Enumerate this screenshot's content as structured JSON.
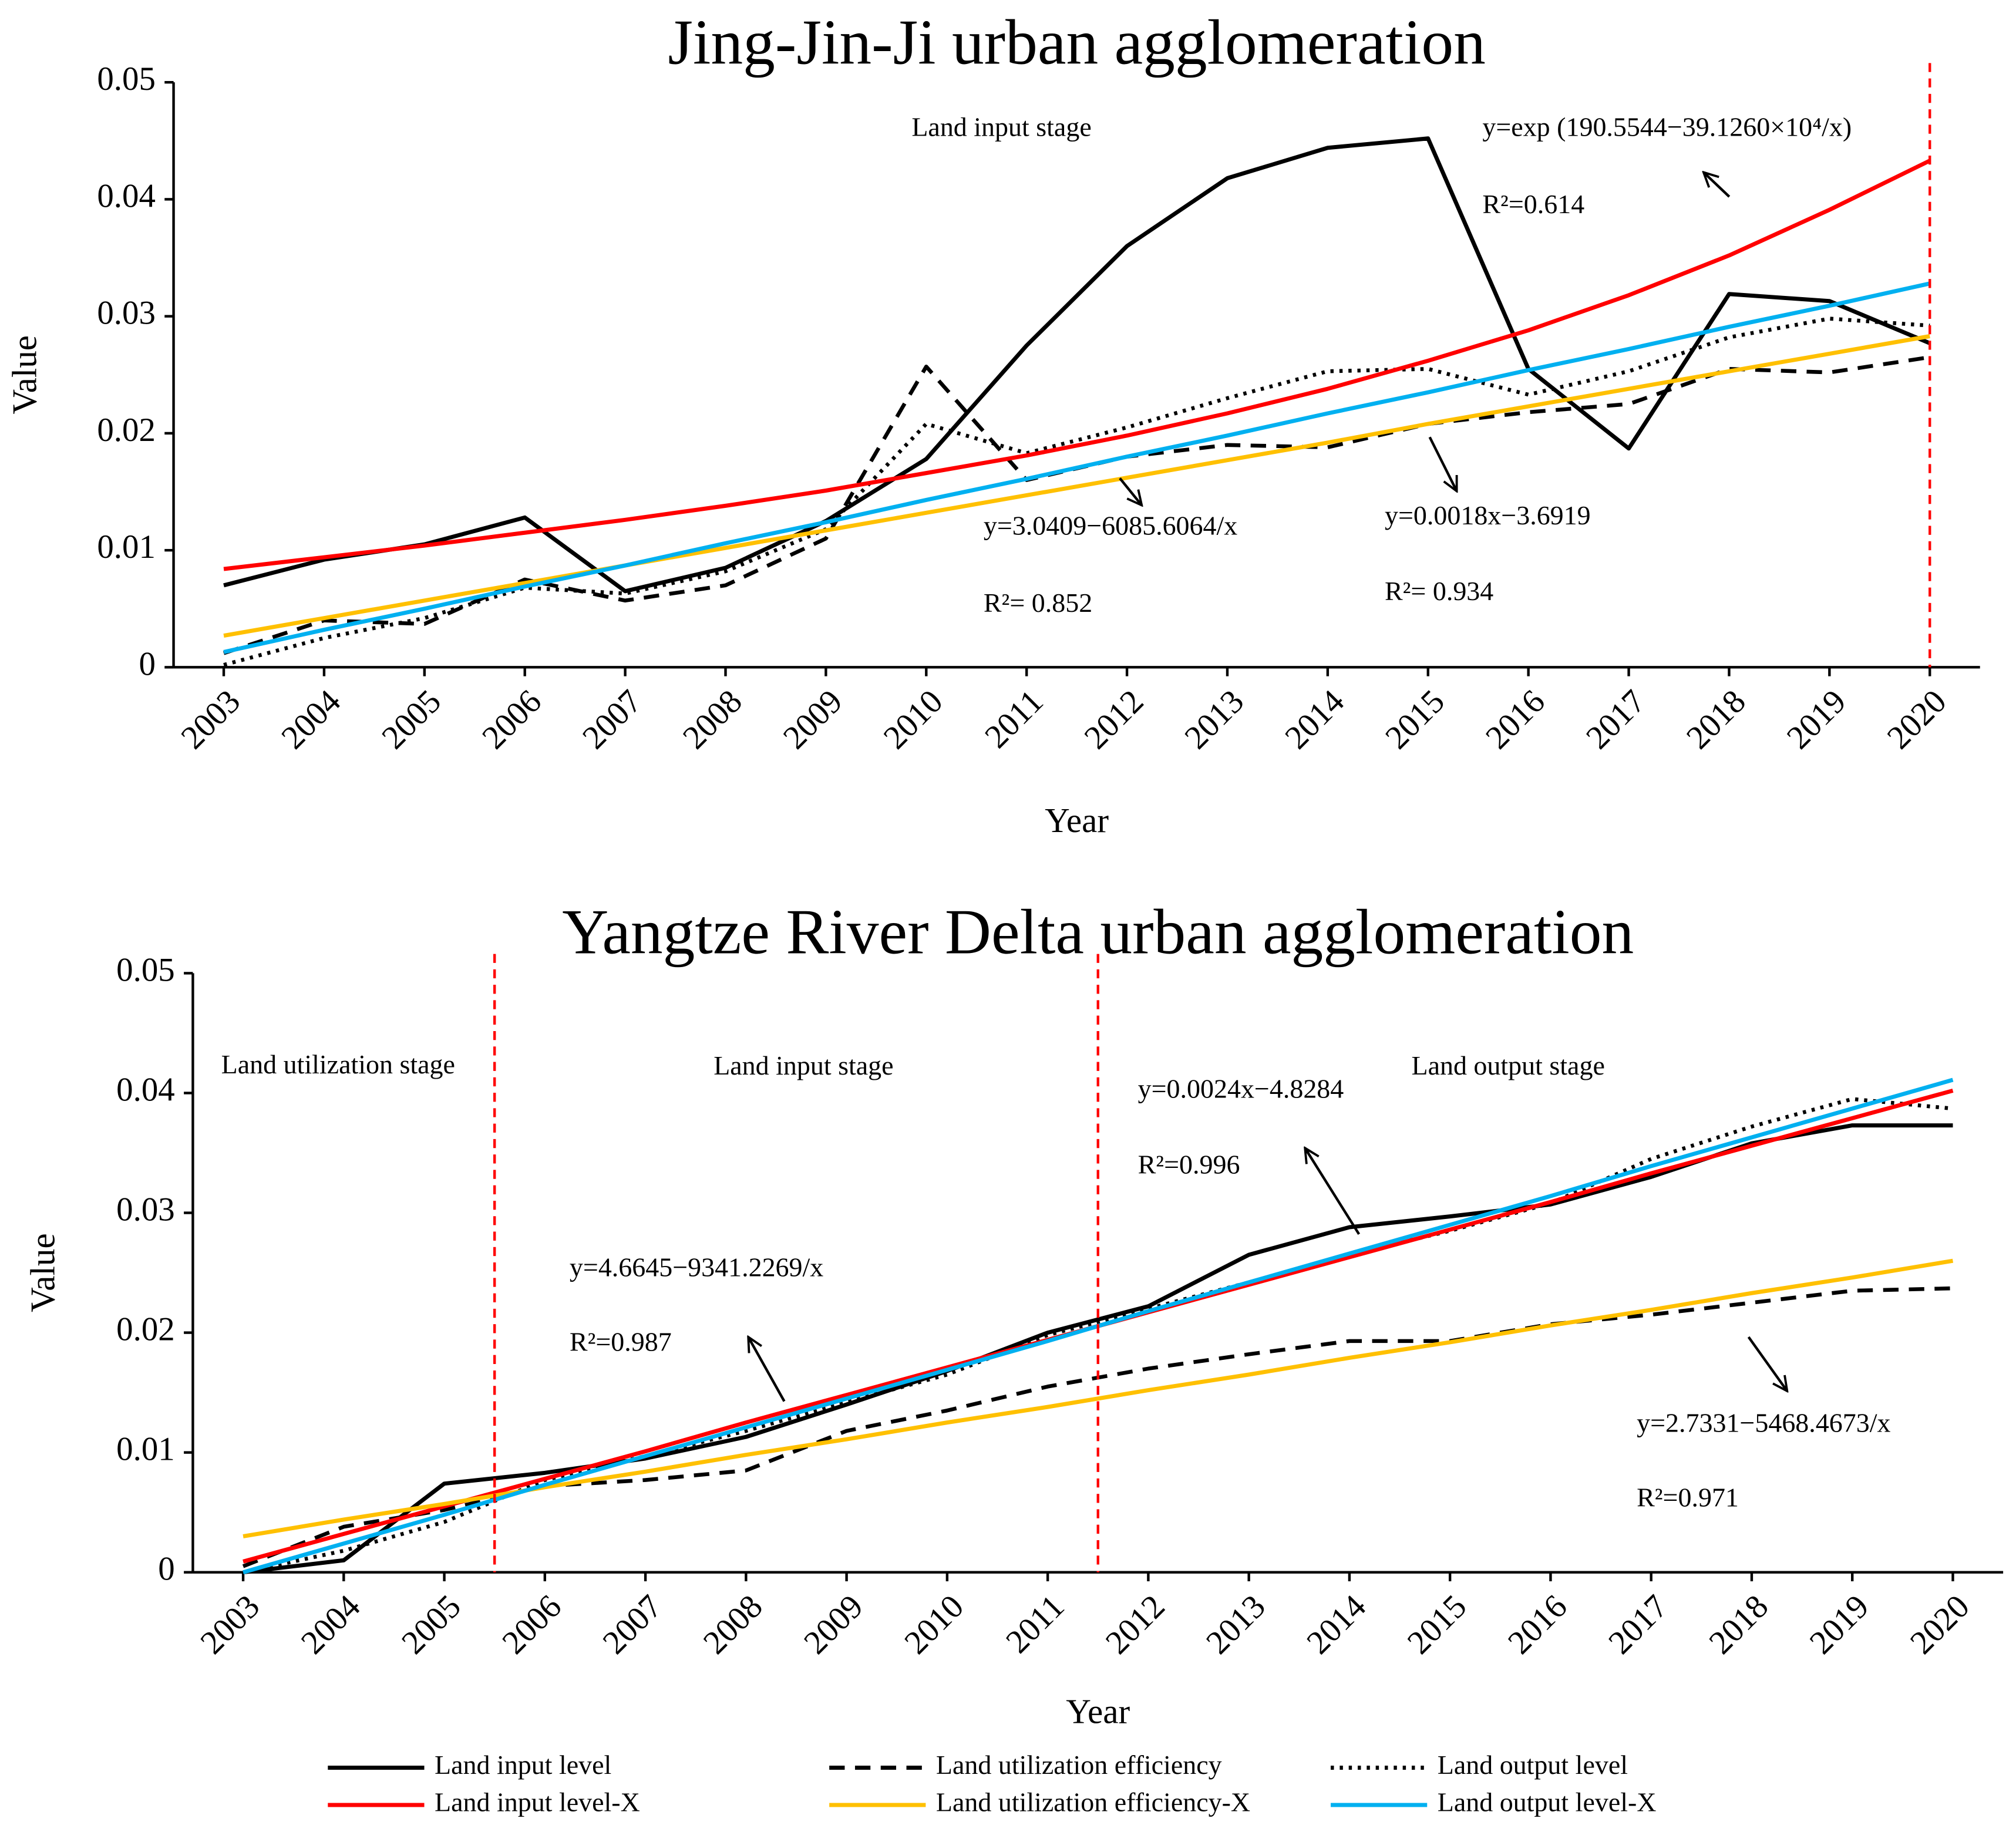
{
  "chart_data": [
    {
      "type": "line",
      "title": "Jing-Jin-Ji urban agglomeration",
      "xlabel": "Year",
      "ylabel": "Value",
      "x": [
        2003,
        2004,
        2005,
        2006,
        2007,
        2008,
        2009,
        2010,
        2011,
        2012,
        2013,
        2014,
        2015,
        2016,
        2017,
        2018,
        2019,
        2020
      ],
      "xlim": [
        2002.5,
        2020.5
      ],
      "xticks": [
        2003,
        2004,
        2005,
        2006,
        2007,
        2008,
        2009,
        2010,
        2011,
        2012,
        2013,
        2014,
        2015,
        2016,
        2017,
        2018,
        2019,
        2020
      ],
      "ylim": [
        0,
        0.05
      ],
      "yticks": [
        0,
        0.01,
        0.02,
        0.03,
        0.04,
        0.05
      ],
      "vlines": [
        2020
      ],
      "vline_color": "#ff0000",
      "series": [
        {
          "color": "#000000",
          "style": "solid",
          "values": [
            0.007,
            0.0092,
            0.0105,
            0.0128,
            0.0065,
            0.0085,
            0.0125,
            0.0178,
            0.0275,
            0.036,
            0.0418,
            0.0444,
            0.0452,
            0.0255,
            0.0187,
            0.0319,
            0.0313,
            0.0277
          ]
        },
        {
          "color": "#000000",
          "style": "dashed",
          "values": [
            0.0012,
            0.004,
            0.0037,
            0.0075,
            0.0057,
            0.007,
            0.011,
            0.0257,
            0.016,
            0.018,
            0.019,
            0.0188,
            0.0208,
            0.0218,
            0.0225,
            0.0255,
            0.0252,
            0.0265
          ]
        },
        {
          "color": "#000000",
          "style": "dotted",
          "values": [
            0.0002,
            0.0025,
            0.0042,
            0.0068,
            0.0063,
            0.0082,
            0.0118,
            0.0208,
            0.0183,
            0.0205,
            0.023,
            0.0253,
            0.0255,
            0.0233,
            0.0253,
            0.0282,
            0.0298,
            0.0292
          ]
        },
        {
          "color": "#ff0000",
          "style": "solid",
          "values": [
            0.0084,
            0.0094,
            0.0104,
            0.0115,
            0.0126,
            0.0138,
            0.0151,
            0.0166,
            0.0181,
            0.0198,
            0.0217,
            0.0238,
            0.0262,
            0.0288,
            0.0318,
            0.0352,
            0.0391,
            0.0433
          ]
        },
        {
          "color": "#ffc000",
          "style": "solid",
          "values": [
            0.0027,
            0.0042,
            0.0057,
            0.0072,
            0.0087,
            0.0102,
            0.0117,
            0.0132,
            0.0147,
            0.0162,
            0.0177,
            0.0192,
            0.0208,
            0.0223,
            0.0238,
            0.0253,
            0.0268,
            0.0283
          ]
        },
        {
          "color": "#00b0f0",
          "style": "solid",
          "values": [
            0.0013,
            0.0032,
            0.005,
            0.0069,
            0.0087,
            0.0106,
            0.0124,
            0.0143,
            0.0161,
            0.018,
            0.0198,
            0.0217,
            0.0235,
            0.0254,
            0.0272,
            0.0291,
            0.0309,
            0.0328
          ]
        }
      ],
      "annotations": [
        "Land input stage",
        "y=exp (190.5544−39.1260×10⁴/x)",
        "R²=0.614",
        "y=3.0409−6085.6064/x",
        "R²=  0.852",
        "y=0.0018x−3.6919",
        "R²=  0.934"
      ]
    },
    {
      "type": "line",
      "title": "Yangtze River Delta urban agglomeration",
      "xlabel": "Year",
      "ylabel": "Value",
      "x": [
        2003,
        2004,
        2005,
        2006,
        2007,
        2008,
        2009,
        2010,
        2011,
        2012,
        2013,
        2014,
        2015,
        2016,
        2017,
        2018,
        2019,
        2020
      ],
      "xlim": [
        2002.5,
        2020.5
      ],
      "xticks": [
        2003,
        2004,
        2005,
        2006,
        2007,
        2008,
        2009,
        2010,
        2011,
        2012,
        2013,
        2014,
        2015,
        2016,
        2017,
        2018,
        2019,
        2020
      ],
      "ylim": [
        0,
        0.05
      ],
      "yticks": [
        0,
        0.01,
        0.02,
        0.03,
        0.04,
        0.05
      ],
      "vlines": [
        2005.5,
        2011.5
      ],
      "vline_color": "#ff0000",
      "series": [
        {
          "name": "Land input level",
          "color": "#000000",
          "style": "solid",
          "values": [
            0.0,
            0.001,
            0.0074,
            0.0083,
            0.0095,
            0.0113,
            0.014,
            0.0168,
            0.02,
            0.0222,
            0.0265,
            0.0288,
            0.0297,
            0.0307,
            0.033,
            0.0358,
            0.0373,
            0.0373
          ]
        },
        {
          "name": "Land utilization efficiency",
          "color": "#000000",
          "style": "dashed",
          "values": [
            0.0005,
            0.0038,
            0.0052,
            0.0072,
            0.0077,
            0.0085,
            0.0118,
            0.0135,
            0.0155,
            0.017,
            0.0182,
            0.0193,
            0.0193,
            0.0207,
            0.0215,
            0.0225,
            0.0235,
            0.0237
          ]
        },
        {
          "name": "Land output level",
          "color": "#000000",
          "style": "dotted",
          "values": [
            0.0,
            0.0018,
            0.0042,
            0.0077,
            0.0097,
            0.0118,
            0.0142,
            0.0165,
            0.0198,
            0.022,
            0.0242,
            0.0265,
            0.0285,
            0.0308,
            0.0345,
            0.0372,
            0.0395,
            0.0387
          ]
        },
        {
          "name": "Land input level-X",
          "color": "#ff0000",
          "style": "solid",
          "values": [
            0.0009,
            0.0032,
            0.0055,
            0.0078,
            0.0101,
            0.0125,
            0.0148,
            0.0171,
            0.0194,
            0.0217,
            0.024,
            0.0263,
            0.0286,
            0.0309,
            0.0333,
            0.0356,
            0.0379,
            0.0402
          ]
        },
        {
          "name": "Land utilization efficiency-X",
          "color": "#ffc000",
          "style": "solid",
          "values": [
            0.003,
            0.0044,
            0.0057,
            0.0071,
            0.0084,
            0.0098,
            0.0111,
            0.0125,
            0.0138,
            0.0152,
            0.0165,
            0.0179,
            0.0192,
            0.0206,
            0.0219,
            0.0233,
            0.0246,
            0.026
          ]
        },
        {
          "name": "Land output level-X",
          "color": "#00b0f0",
          "style": "solid",
          "values": [
            0.0,
            0.0024,
            0.0048,
            0.0073,
            0.0097,
            0.0121,
            0.0145,
            0.0169,
            0.0193,
            0.0218,
            0.0242,
            0.0266,
            0.029,
            0.0314,
            0.0339,
            0.0363,
            0.0387,
            0.0411
          ]
        }
      ],
      "annotations": [
        "Land utilization stage",
        "Land input stage",
        "Land output stage",
        "y=0.0024x−4.8284",
        "R²=0.996",
        "y=4.6645−9341.2269/x",
        "R²=0.987",
        "y=2.7331−5468.4673/x",
        "R²=0.971"
      ]
    }
  ]
}
